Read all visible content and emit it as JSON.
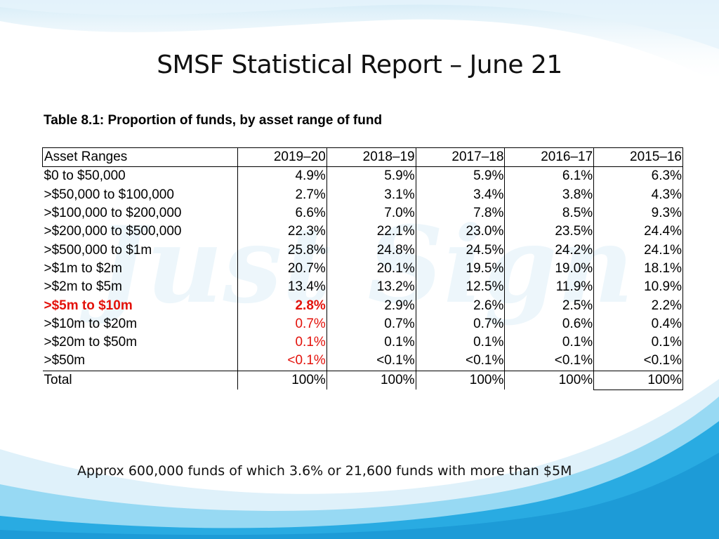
{
  "title": "SMSF Statistical Report – June 21",
  "table": {
    "caption": "Table 8.1: Proportion of funds, by asset range of fund",
    "headers": [
      "Asset Ranges",
      "2019–20",
      "2018–19",
      "2017–18",
      "2016–17",
      "2015–16"
    ],
    "rows": [
      {
        "label": "$0 to $50,000",
        "values": [
          "4.9%",
          "5.9%",
          "5.9%",
          "6.1%",
          "6.3%"
        ],
        "highlight": "none"
      },
      {
        "label": ">$50,000 to $100,000",
        "values": [
          "2.7%",
          "3.1%",
          "3.4%",
          "3.8%",
          "4.3%"
        ],
        "highlight": "none"
      },
      {
        "label": ">$100,000 to $200,000",
        "values": [
          "6.6%",
          "7.0%",
          "7.8%",
          "8.5%",
          "9.3%"
        ],
        "highlight": "none"
      },
      {
        "label": ">$200,000 to $500,000",
        "values": [
          "22.3%",
          "22.1%",
          "23.0%",
          "23.5%",
          "24.4%"
        ],
        "highlight": "none"
      },
      {
        "label": ">$500,000 to $1m",
        "values": [
          "25.8%",
          "24.8%",
          "24.5%",
          "24.2%",
          "24.1%"
        ],
        "highlight": "none"
      },
      {
        "label": ">$1m to $2m",
        "values": [
          "20.7%",
          "20.1%",
          "19.5%",
          "19.0%",
          "18.1%"
        ],
        "highlight": "none"
      },
      {
        "label": ">$2m to $5m",
        "values": [
          "13.4%",
          "13.2%",
          "12.5%",
          "11.9%",
          "10.9%"
        ],
        "highlight": "none"
      },
      {
        "label": ">$5m to $10m",
        "values": [
          "2.8%",
          "2.9%",
          "2.6%",
          "2.5%",
          "2.2%"
        ],
        "highlight": "bold-red"
      },
      {
        "label": ">$10m to $20m",
        "values": [
          "0.7%",
          "0.7%",
          "0.7%",
          "0.6%",
          "0.4%"
        ],
        "highlight": "red"
      },
      {
        "label": ">$20m to $50m",
        "values": [
          "0.1%",
          "0.1%",
          "0.1%",
          "0.1%",
          "0.1%"
        ],
        "highlight": "red"
      },
      {
        "label": ">$50m",
        "values": [
          "<0.1%",
          "<0.1%",
          "<0.1%",
          "<0.1%",
          "<0.1%"
        ],
        "highlight": "red"
      }
    ],
    "total": {
      "label": "Total",
      "values": [
        "100%",
        "100%",
        "100%",
        "100%",
        "100%"
      ]
    }
  },
  "footnote": "Approx 600,000 funds of which 3.6% or 21,600 funds with more than $5M",
  "colors": {
    "highlight_red": "#e3120b",
    "wave_blue": "#29abe2",
    "wave_light": "#d9eef8"
  }
}
